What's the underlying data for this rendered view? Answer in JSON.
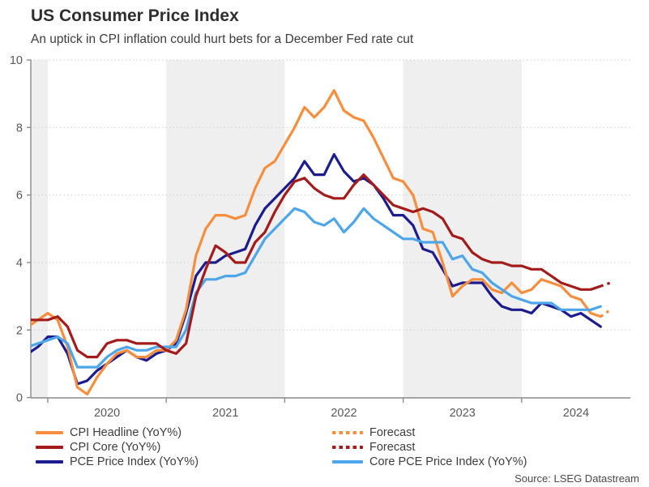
{
  "header": {
    "title": "US Consumer Price Index",
    "subtitle": "An uptick in CPI inflation could hurt bets for a December Fed rate cut"
  },
  "chart_data": {
    "type": "line",
    "title": "US Consumer Price Index",
    "subtitle": "An uptick in CPI inflation could hurt bets for a December Fed rate cut",
    "x_start": "2019-11",
    "x_frequency": "monthly",
    "x_ticks": [
      "2020",
      "2021",
      "2022",
      "2023",
      "2024"
    ],
    "y_ticks": [
      0,
      2,
      4,
      6,
      8,
      10
    ],
    "ylim": [
      0,
      10
    ],
    "grid": "horizontal-dotted",
    "band_color": "#efefef",
    "shaded_bands": [
      "pre-2020",
      "2021",
      "2023"
    ],
    "series": [
      {
        "id": "cpi_headline",
        "name": "CPI Headline (YoY%)",
        "color": "#f78e3d",
        "style": "solid",
        "start_index": 0,
        "values": [
          2.1,
          2.3,
          2.5,
          2.3,
          1.5,
          0.3,
          0.1,
          0.6,
          1.0,
          1.3,
          1.4,
          1.2,
          1.2,
          1.4,
          1.4,
          1.7,
          2.6,
          4.2,
          5.0,
          5.4,
          5.4,
          5.3,
          5.4,
          6.2,
          6.8,
          7.0,
          7.5,
          8.0,
          8.6,
          8.3,
          8.6,
          9.1,
          8.5,
          8.3,
          8.2,
          7.7,
          7.1,
          6.5,
          6.4,
          6.0,
          5.0,
          4.9,
          4.0,
          3.0,
          3.3,
          3.5,
          3.5,
          3.2,
          3.1,
          3.4,
          3.1,
          3.2,
          3.5,
          3.4,
          3.3,
          3.0,
          2.9,
          2.5,
          2.4
        ]
      },
      {
        "id": "cpi_core",
        "name": "CPI Core (YoY%)",
        "color": "#a31b1b",
        "style": "solid",
        "start_index": 0,
        "values": [
          2.3,
          2.3,
          2.3,
          2.4,
          2.1,
          1.4,
          1.2,
          1.2,
          1.6,
          1.7,
          1.7,
          1.6,
          1.6,
          1.6,
          1.4,
          1.3,
          1.6,
          3.0,
          3.8,
          4.5,
          4.3,
          4.0,
          4.0,
          4.6,
          4.9,
          5.5,
          6.0,
          6.4,
          6.5,
          6.2,
          6.0,
          5.9,
          5.9,
          6.3,
          6.6,
          6.3,
          6.0,
          5.7,
          5.6,
          5.5,
          5.6,
          5.5,
          5.3,
          4.8,
          4.7,
          4.3,
          4.1,
          4.0,
          4.0,
          3.9,
          3.9,
          3.8,
          3.8,
          3.6,
          3.4,
          3.3,
          3.2,
          3.2,
          3.3
        ]
      },
      {
        "id": "pce",
        "name": "PCE Price Index (YoY%)",
        "color": "#1c1c8f",
        "style": "solid",
        "start_index": 0,
        "values": [
          1.3,
          1.5,
          1.8,
          1.8,
          1.3,
          0.4,
          0.5,
          0.8,
          1.0,
          1.2,
          1.4,
          1.2,
          1.1,
          1.3,
          1.4,
          1.6,
          2.5,
          3.6,
          4.0,
          4.0,
          4.2,
          4.3,
          4.4,
          5.1,
          5.6,
          5.9,
          6.2,
          6.5,
          7.0,
          6.6,
          6.6,
          7.2,
          6.7,
          6.4,
          6.5,
          6.3,
          5.9,
          5.4,
          5.4,
          5.1,
          4.4,
          4.3,
          3.8,
          3.3,
          3.4,
          3.4,
          3.4,
          3.0,
          2.7,
          2.6,
          2.6,
          2.5,
          2.8,
          2.7,
          2.6,
          2.4,
          2.5,
          2.3,
          2.1
        ]
      },
      {
        "id": "core_pce",
        "name": "Core PCE Price Index (YoY%)",
        "color": "#4ea6ea",
        "style": "solid",
        "start_index": 0,
        "values": [
          1.5,
          1.6,
          1.7,
          1.8,
          1.6,
          0.9,
          0.9,
          0.9,
          1.2,
          1.4,
          1.5,
          1.4,
          1.4,
          1.5,
          1.5,
          1.5,
          2.0,
          3.1,
          3.5,
          3.5,
          3.6,
          3.6,
          3.7,
          4.2,
          4.7,
          5.0,
          5.3,
          5.6,
          5.5,
          5.2,
          5.1,
          5.3,
          4.9,
          5.2,
          5.6,
          5.3,
          5.1,
          4.9,
          4.7,
          4.7,
          4.6,
          4.6,
          4.6,
          4.1,
          4.2,
          3.8,
          3.7,
          3.4,
          3.2,
          3.0,
          2.9,
          2.8,
          2.8,
          2.8,
          2.6,
          2.6,
          2.6,
          2.6,
          2.7
        ]
      },
      {
        "id": "forecast_headline",
        "name": "Forecast",
        "color": "#f78e3d",
        "style": "dotted",
        "start_index": 58,
        "values": [
          2.4,
          2.6
        ]
      },
      {
        "id": "forecast_core",
        "name": "Forecast",
        "color": "#a31b1b",
        "style": "dotted",
        "start_index": 58,
        "values": [
          3.3,
          3.4
        ]
      }
    ],
    "legend": [
      {
        "label": "CPI Headline (YoY%)",
        "color": "#f78e3d",
        "style": "solid",
        "column": "left"
      },
      {
        "label": "CPI Core (YoY%)",
        "color": "#a31b1b",
        "style": "solid",
        "column": "left"
      },
      {
        "label": "PCE Price Index (YoY%)",
        "color": "#1c1c8f",
        "style": "solid",
        "column": "left"
      },
      {
        "label": "Forecast",
        "color": "#f78e3d",
        "style": "dotted",
        "column": "right"
      },
      {
        "label": "Forecast",
        "color": "#a31b1b",
        "style": "dotted",
        "column": "right"
      },
      {
        "label": "Core PCE Price Index (YoY%)",
        "color": "#4ea6ea",
        "style": "solid",
        "column": "right"
      }
    ],
    "source": "Source: LSEG Datastream"
  }
}
